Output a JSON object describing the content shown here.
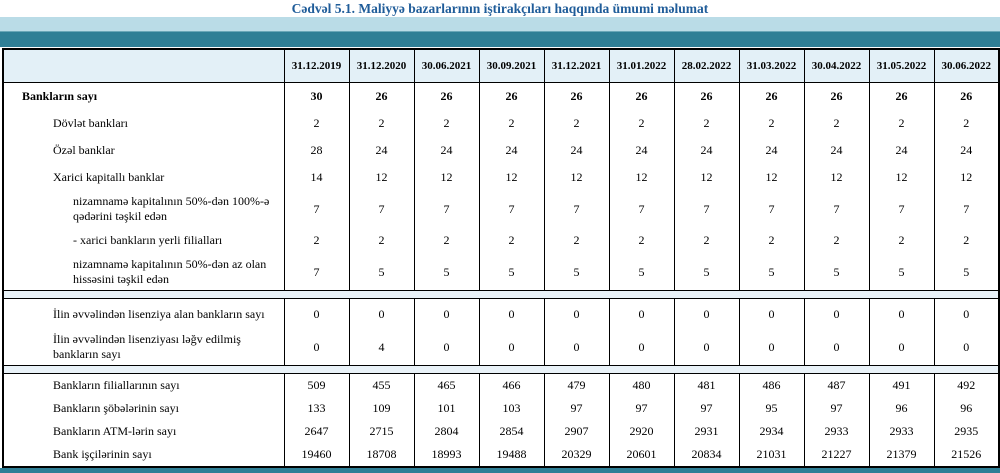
{
  "title": "Cədvəl 5.1. Maliyyə bazarlarının iştirakçıları haqqında ümumi məlumat",
  "colors": {
    "title_text": "#1f5c99",
    "band_light": "#badce7",
    "band_teal": "#2f7f96",
    "header_bg": "#e3f0f7",
    "separator_bg": "#e9f2f8",
    "border_col": "#000000"
  },
  "chart_data": {
    "type": "table",
    "title": "Cədvəl 5.1. Maliyyə bazarlarının iştirakçıları haqqında ümumi məlumat",
    "columns": [
      "31.12.2019",
      "31.12.2020",
      "30.06.2021",
      "30.09.2021",
      "31.12.2021",
      "31.01.2022",
      "28.02.2022",
      "31.03.2022",
      "30.04.2022",
      "31.05.2022",
      "30.06.2022"
    ]
  },
  "table": {
    "corner_label": "",
    "columns": [
      "31.12.2019",
      "31.12.2020",
      "30.06.2021",
      "30.09.2021",
      "31.12.2021",
      "31.01.2022",
      "28.02.2022",
      "31.03.2022",
      "30.04.2022",
      "31.05.2022",
      "30.06.2022"
    ],
    "sections": [
      {
        "rows": [
          {
            "label": "Bankların sayı",
            "indent": 0,
            "bold": true,
            "size": "h27",
            "values": [
              30,
              26,
              26,
              26,
              26,
              26,
              26,
              26,
              26,
              26,
              26
            ]
          },
          {
            "label": "Dövlət bankları",
            "indent": 1,
            "bold": false,
            "size": "h27",
            "values": [
              2,
              2,
              2,
              2,
              2,
              2,
              2,
              2,
              2,
              2,
              2
            ]
          },
          {
            "label": "Özəl banklar",
            "indent": 1,
            "bold": false,
            "size": "h27",
            "values": [
              28,
              24,
              24,
              24,
              24,
              24,
              24,
              24,
              24,
              24,
              24
            ]
          },
          {
            "label": "Xarici kapitallı banklar",
            "indent": 1,
            "bold": false,
            "size": "h27",
            "values": [
              14,
              12,
              12,
              12,
              12,
              12,
              12,
              12,
              12,
              12,
              12
            ]
          },
          {
            "label": "nizamnamə kapitalının 50%-dən 100%-ə qədərini təşkil edən",
            "indent": 2,
            "bold": false,
            "size": "h36",
            "values": [
              7,
              7,
              7,
              7,
              7,
              7,
              7,
              7,
              7,
              7,
              7
            ]
          },
          {
            "label": "- xarici bankların yerli filialları",
            "indent": 2,
            "bold": false,
            "size": "h27",
            "values": [
              2,
              2,
              2,
              2,
              2,
              2,
              2,
              2,
              2,
              2,
              2
            ]
          },
          {
            "label": "nizamnamə kapitalının 50%-dən az olan hissəsini təşkil edən",
            "indent": 2,
            "bold": false,
            "size": "h36",
            "values": [
              7,
              5,
              5,
              5,
              5,
              5,
              5,
              5,
              5,
              5,
              5
            ]
          }
        ]
      },
      {
        "rows": [
          {
            "label": "İlin əvvəlindən lisenziya alan bankların sayı",
            "indent": 1,
            "bold": false,
            "size": "h30",
            "values": [
              0,
              0,
              0,
              0,
              0,
              0,
              0,
              0,
              0,
              0,
              0
            ]
          },
          {
            "label": "İlin əvvəlindən lisenziyası ləğv edilmiş bankların sayı",
            "indent": 1,
            "bold": false,
            "size": "h36",
            "values": [
              0,
              4,
              0,
              0,
              0,
              0,
              0,
              0,
              0,
              0,
              0
            ]
          }
        ]
      },
      {
        "rows": [
          {
            "label": "Bankların filiallarının sayı",
            "indent": 1,
            "bold": false,
            "size": "h24",
            "values": [
              509,
              455,
              465,
              466,
              479,
              480,
              481,
              486,
              487,
              491,
              492
            ]
          },
          {
            "label": "Bankların şöbələrinin sayı",
            "indent": 1,
            "bold": false,
            "size": "h24",
            "values": [
              133,
              109,
              101,
              103,
              97,
              97,
              97,
              95,
              97,
              96,
              96
            ]
          },
          {
            "label": "Bankların ATM-lərin sayı",
            "indent": 1,
            "bold": false,
            "size": "h24",
            "values": [
              2647,
              2715,
              2804,
              2854,
              2907,
              2920,
              2931,
              2934,
              2933,
              2933,
              2935
            ]
          },
          {
            "label": "Bank işçilərinin sayı",
            "indent": 1,
            "bold": false,
            "size": "h24",
            "values": [
              19460,
              18708,
              18993,
              19488,
              20329,
              20601,
              20834,
              21031,
              21227,
              21379,
              21526
            ]
          }
        ]
      }
    ]
  }
}
